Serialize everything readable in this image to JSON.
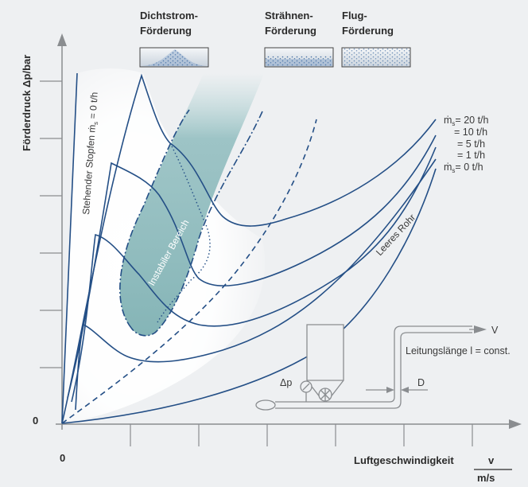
{
  "axes": {
    "y_label": "Förderdruck Δp/bar",
    "x_label": "Luftgeschwindigkeit",
    "x_unit_top": "v",
    "x_unit_bottom": "m/s",
    "origin_y": "0",
    "origin_x": "0"
  },
  "regimes": [
    {
      "line1": "Dichtstrom-",
      "line2": "Förderung"
    },
    {
      "line1": "Strähnen-",
      "line2": "Förderung"
    },
    {
      "line1": "Flug-",
      "line2": "Förderung"
    }
  ],
  "curve_labels": {
    "stopfen": "Stehender Stopfen ṁ",
    "stopfen_sub": "s",
    "stopfen_value": " = 0 t/h",
    "instabil": "Instabiler Bereich",
    "leeres_rohr": "Leeres Rohr"
  },
  "mass_flow_labels": [
    {
      "prefix": "ṁ",
      "sub": "s",
      "value": "= 20  t/h"
    },
    {
      "prefix": "",
      "sub": "",
      "value": "= 10  t/h"
    },
    {
      "prefix": "",
      "sub": "",
      "value": "=  5  t/h"
    },
    {
      "prefix": "",
      "sub": "",
      "value": "=  1  t/h"
    },
    {
      "prefix": "ṁ",
      "sub": "s",
      "value": "=  0  t/h"
    }
  ],
  "schematic": {
    "v_label": "V",
    "line_length": "Leitungslänge l = const.",
    "d_label": "D",
    "dp_label": "Δp"
  },
  "colors": {
    "curve": "#244f86",
    "unstable_fill": "#7fb1b3",
    "background": "#eef0f2"
  }
}
